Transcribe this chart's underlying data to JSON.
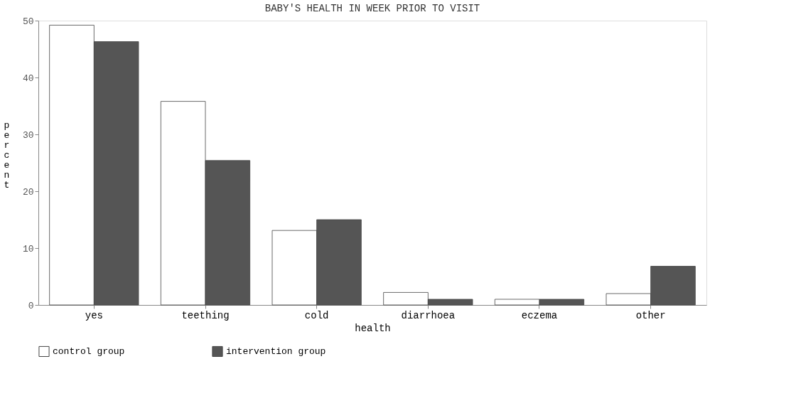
{
  "chart_data": {
    "type": "bar",
    "title": "BABY'S HEALTH IN WEEK PRIOR TO VISIT",
    "xlabel": "health",
    "ylabel": "percent",
    "categories": [
      "yes",
      "teething",
      "cold",
      "diarrhoea",
      "eczema",
      "other"
    ],
    "series": [
      {
        "name": "control group",
        "color": "#ffffff",
        "values": [
          49.2,
          35.8,
          13.1,
          2.2,
          1.0,
          2.0
        ]
      },
      {
        "name": "intervention group",
        "color": "#555555",
        "values": [
          46.3,
          25.4,
          15.0,
          1.0,
          1.0,
          6.8
        ]
      }
    ],
    "ylim": [
      0,
      50
    ],
    "yticks": [
      0,
      10,
      20,
      30,
      40,
      50
    ],
    "grid": false,
    "legend": "bottom"
  }
}
